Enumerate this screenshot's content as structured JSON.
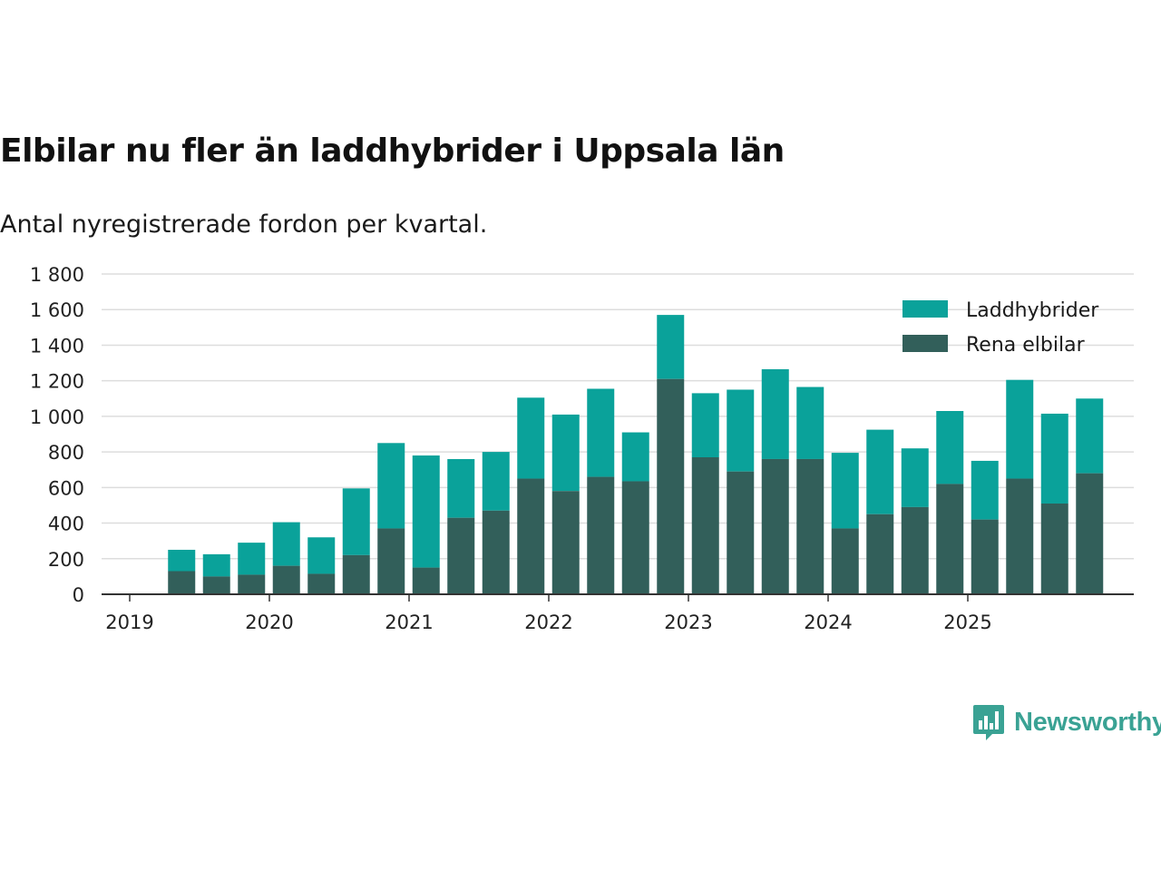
{
  "title": "Elbilar nu fler än laddhybrider i Uppsala län",
  "subtitle": "Antal nyregistrerade fordon per kvartal.",
  "brand": {
    "name": "Newsworthy",
    "logo_icon": "bar-chart-speech-bubble-icon"
  },
  "colors": {
    "laddhybrider": "#0aa29a",
    "elbilar": "#325f5a",
    "grid": "#dddddd",
    "axis": "#333333",
    "brand": "#3aa294"
  },
  "chart_data": {
    "type": "bar",
    "stacked": true,
    "title": "Elbilar nu fler än laddhybrider i Uppsala län",
    "subtitle": "Antal nyregistrerade fordon per kvartal.",
    "xlabel": "",
    "ylabel": "",
    "ylim": [
      0,
      1800
    ],
    "y_ticks": [
      0,
      200,
      400,
      600,
      800,
      1000,
      1200,
      1400,
      1600,
      1800
    ],
    "y_tick_labels": [
      "0",
      "200",
      "400",
      "600",
      "800",
      "1 000",
      "1 200",
      "1 400",
      "1 600",
      "1 800"
    ],
    "x_tick_labels": [
      "2019",
      "2020",
      "2021",
      "2022",
      "2023",
      "2024",
      "2025"
    ],
    "grid": true,
    "legend_position": "top-right",
    "categories": [
      "2019 Q2",
      "2019 Q3",
      "2019 Q4",
      "2020 Q1",
      "2020 Q2",
      "2020 Q3",
      "2020 Q4",
      "2021 Q1",
      "2021 Q2",
      "2021 Q3",
      "2021 Q4",
      "2022 Q1",
      "2022 Q2",
      "2022 Q3",
      "2022 Q4",
      "2023 Q1",
      "2023 Q2",
      "2023 Q3",
      "2023 Q4",
      "2024 Q1",
      "2024 Q2",
      "2024 Q3",
      "2024 Q4",
      "2025 Q1",
      "2025 Q2",
      "2025 Q3",
      "2025 Q4"
    ],
    "series": [
      {
        "name": "Rena elbilar",
        "color": "#325f5a",
        "values": [
          130,
          100,
          110,
          160,
          115,
          220,
          370,
          150,
          430,
          470,
          650,
          580,
          660,
          635,
          1210,
          770,
          690,
          760,
          760,
          370,
          450,
          490,
          620,
          420,
          650,
          510,
          680
        ]
      },
      {
        "name": "Laddhybrider",
        "color": "#0aa29a",
        "values": [
          120,
          125,
          180,
          245,
          205,
          375,
          480,
          630,
          330,
          330,
          455,
          430,
          495,
          275,
          360,
          360,
          460,
          505,
          405,
          425,
          475,
          330,
          410,
          330,
          555,
          505,
          420
        ]
      }
    ]
  }
}
